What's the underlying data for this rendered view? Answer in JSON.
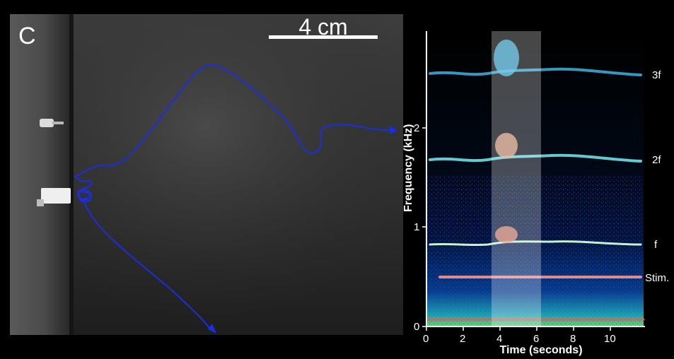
{
  "panel_letter": "C",
  "scale_bar": {
    "label": "4 cm"
  },
  "spectrogram": {
    "ylabel": "Frequency (kHz)",
    "xlabel": "Time (seconds)",
    "yticks": [
      "0",
      "1",
      "2"
    ],
    "xticks": [
      "0",
      "2",
      "4",
      "6",
      "8",
      "10"
    ],
    "harmonic_labels": [
      "3f",
      "2f",
      "f",
      "Stim."
    ]
  },
  "colors": {
    "trajectory": "#1a2ee0",
    "background": "#000000",
    "stim_line": "#e08a8a"
  }
}
